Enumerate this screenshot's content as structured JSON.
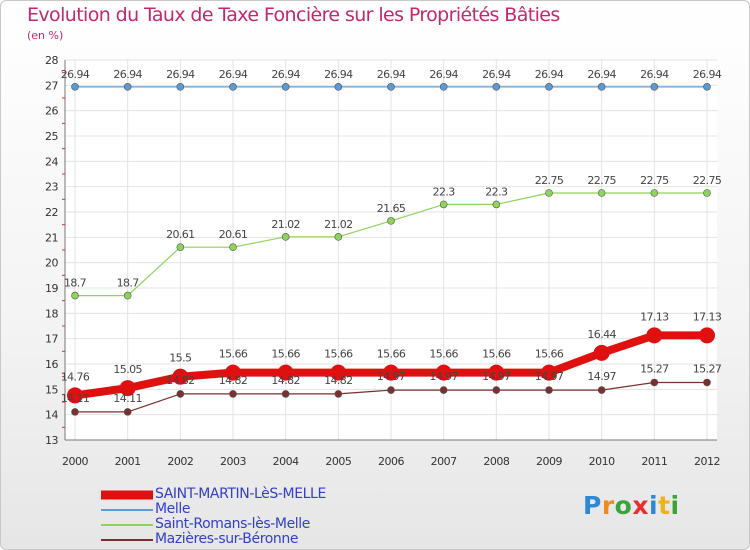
{
  "title": "Evolution du Taux de Taxe Foncière sur les Propriétés Bâties",
  "unit": "(en %)",
  "logo": [
    "P",
    "r",
    "o",
    "x",
    "i",
    "t",
    "i"
  ],
  "logo_colors": [
    "#2e87d6",
    "#f08a1c",
    "#3aa33a",
    "#e63030",
    "#2e87d6",
    "#f0b21c",
    "#3aa33a"
  ],
  "chart_data": {
    "type": "line",
    "x": [
      "2000",
      "2001",
      "2002",
      "2003",
      "2004",
      "2005",
      "2006",
      "2007",
      "2008",
      "2009",
      "2010",
      "2011",
      "2012"
    ],
    "ylim": [
      13,
      28
    ],
    "yticks": [
      13,
      14,
      15,
      16,
      17,
      18,
      19,
      20,
      21,
      22,
      23,
      24,
      25,
      26,
      27,
      28
    ],
    "grid": true,
    "legend": "bottom-left",
    "series": [
      {
        "name": "SAINT-MARTIN-LèS-MELLE",
        "color": "#e01010",
        "values": [
          14.76,
          15.05,
          15.5,
          15.66,
          15.66,
          15.66,
          15.66,
          15.66,
          15.66,
          15.66,
          16.44,
          17.13,
          17.13
        ],
        "labels": [
          "14.76",
          "15.05",
          "15.5",
          "15.66",
          "15.66",
          "15.66",
          "15.66",
          "15.66",
          "15.66",
          "15.66",
          "16.44",
          "17.13",
          "17.13"
        ]
      },
      {
        "name": "Melle",
        "color": "#5b9bd5",
        "values": [
          26.94,
          26.94,
          26.94,
          26.94,
          26.94,
          26.94,
          26.94,
          26.94,
          26.94,
          26.94,
          26.94,
          26.94,
          26.94
        ],
        "labels": [
          "26.94",
          "26.94",
          "26.94",
          "26.94",
          "26.94",
          "26.94",
          "26.94",
          "26.94",
          "26.94",
          "26.94",
          "26.94",
          "26.94",
          "26.94"
        ]
      },
      {
        "name": "Saint-Romans-lès-Melle",
        "color": "#8fd45a",
        "values": [
          18.7,
          18.7,
          20.61,
          20.61,
          21.02,
          21.02,
          21.65,
          22.3,
          22.3,
          22.75,
          22.75,
          22.75,
          22.75
        ],
        "labels": [
          "18.7",
          "18.7",
          "20.61",
          "20.61",
          "21.02",
          "21.02",
          "21.65",
          "22.3",
          "22.3",
          "22.75",
          "22.75",
          "22.75",
          "22.75"
        ]
      },
      {
        "name": "Mazières-sur-Béronne",
        "color": "#7a3030",
        "values": [
          14.11,
          14.11,
          14.82,
          14.82,
          14.82,
          14.82,
          14.97,
          14.97,
          14.97,
          14.97,
          14.97,
          15.27,
          15.27
        ],
        "labels": [
          "14.11",
          "14.11",
          "14.82",
          "14.82",
          "14.82",
          "14.82",
          "14.97",
          "14.97",
          "14.97",
          "14.97",
          "14.97",
          "15.27",
          "15.27"
        ]
      }
    ]
  }
}
